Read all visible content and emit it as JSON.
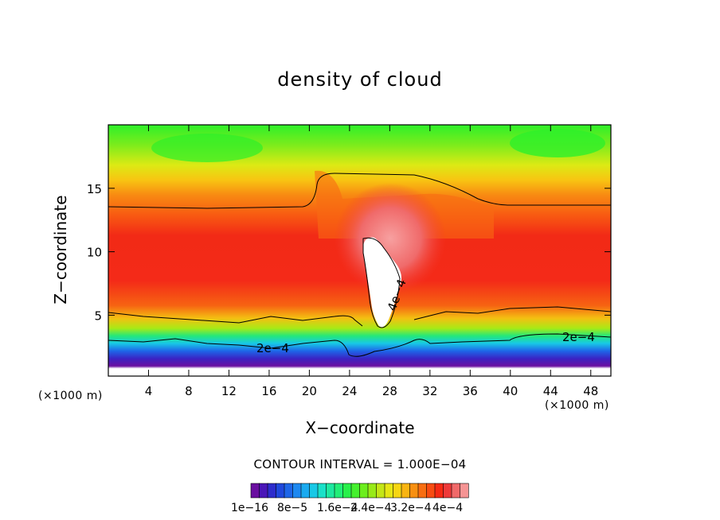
{
  "chart_data": {
    "type": "heatmap",
    "title": "density of cloud",
    "xlabel": "X−coordinate",
    "ylabel": "Z−coordinate",
    "x_unit": "(×1000 m)",
    "xlim": [
      0,
      50
    ],
    "ylim": [
      0.2,
      20
    ],
    "x_ticks": [
      4,
      8,
      12,
      16,
      20,
      24,
      28,
      32,
      36,
      40,
      44,
      48
    ],
    "y_ticks": [
      5,
      10,
      15
    ],
    "x_tick_labels": [
      "4",
      "8",
      "12",
      "16",
      "20",
      "24",
      "28",
      "32",
      "36",
      "40",
      "44",
      "48"
    ],
    "y_tick_labels": [
      "5",
      "10",
      "15"
    ],
    "contour_interval": "CONTOUR INTERVAL = 1.000E−04",
    "contour_labels": [
      "2e−4",
      "2e−4",
      "4e−4"
    ],
    "colorbar": {
      "min": 1e-16,
      "max": 0.0004,
      "tick_labels": [
        "1e−16",
        "8e−5",
        "1.6e−4",
        "2.4e−4",
        "3.2e−4",
        "4e−4"
      ],
      "colors": [
        "#6a0fa0",
        "#4a16b8",
        "#2d2ccc",
        "#1f48dc",
        "#1e66e8",
        "#1d88f0",
        "#1aaaf0",
        "#18c8e6",
        "#1ae0c8",
        "#1ee8a0",
        "#22ee78",
        "#28f04a",
        "#45f02e",
        "#6cee1e",
        "#98ea18",
        "#c4e616",
        "#e6e614",
        "#f6d612",
        "#f8b412",
        "#f89012",
        "#f86e12",
        "#f84c12",
        "#f52a14",
        "#ee3a3a",
        "#f06a6a",
        "#f59494"
      ]
    },
    "grid": false,
    "legend": "bottom-center"
  }
}
